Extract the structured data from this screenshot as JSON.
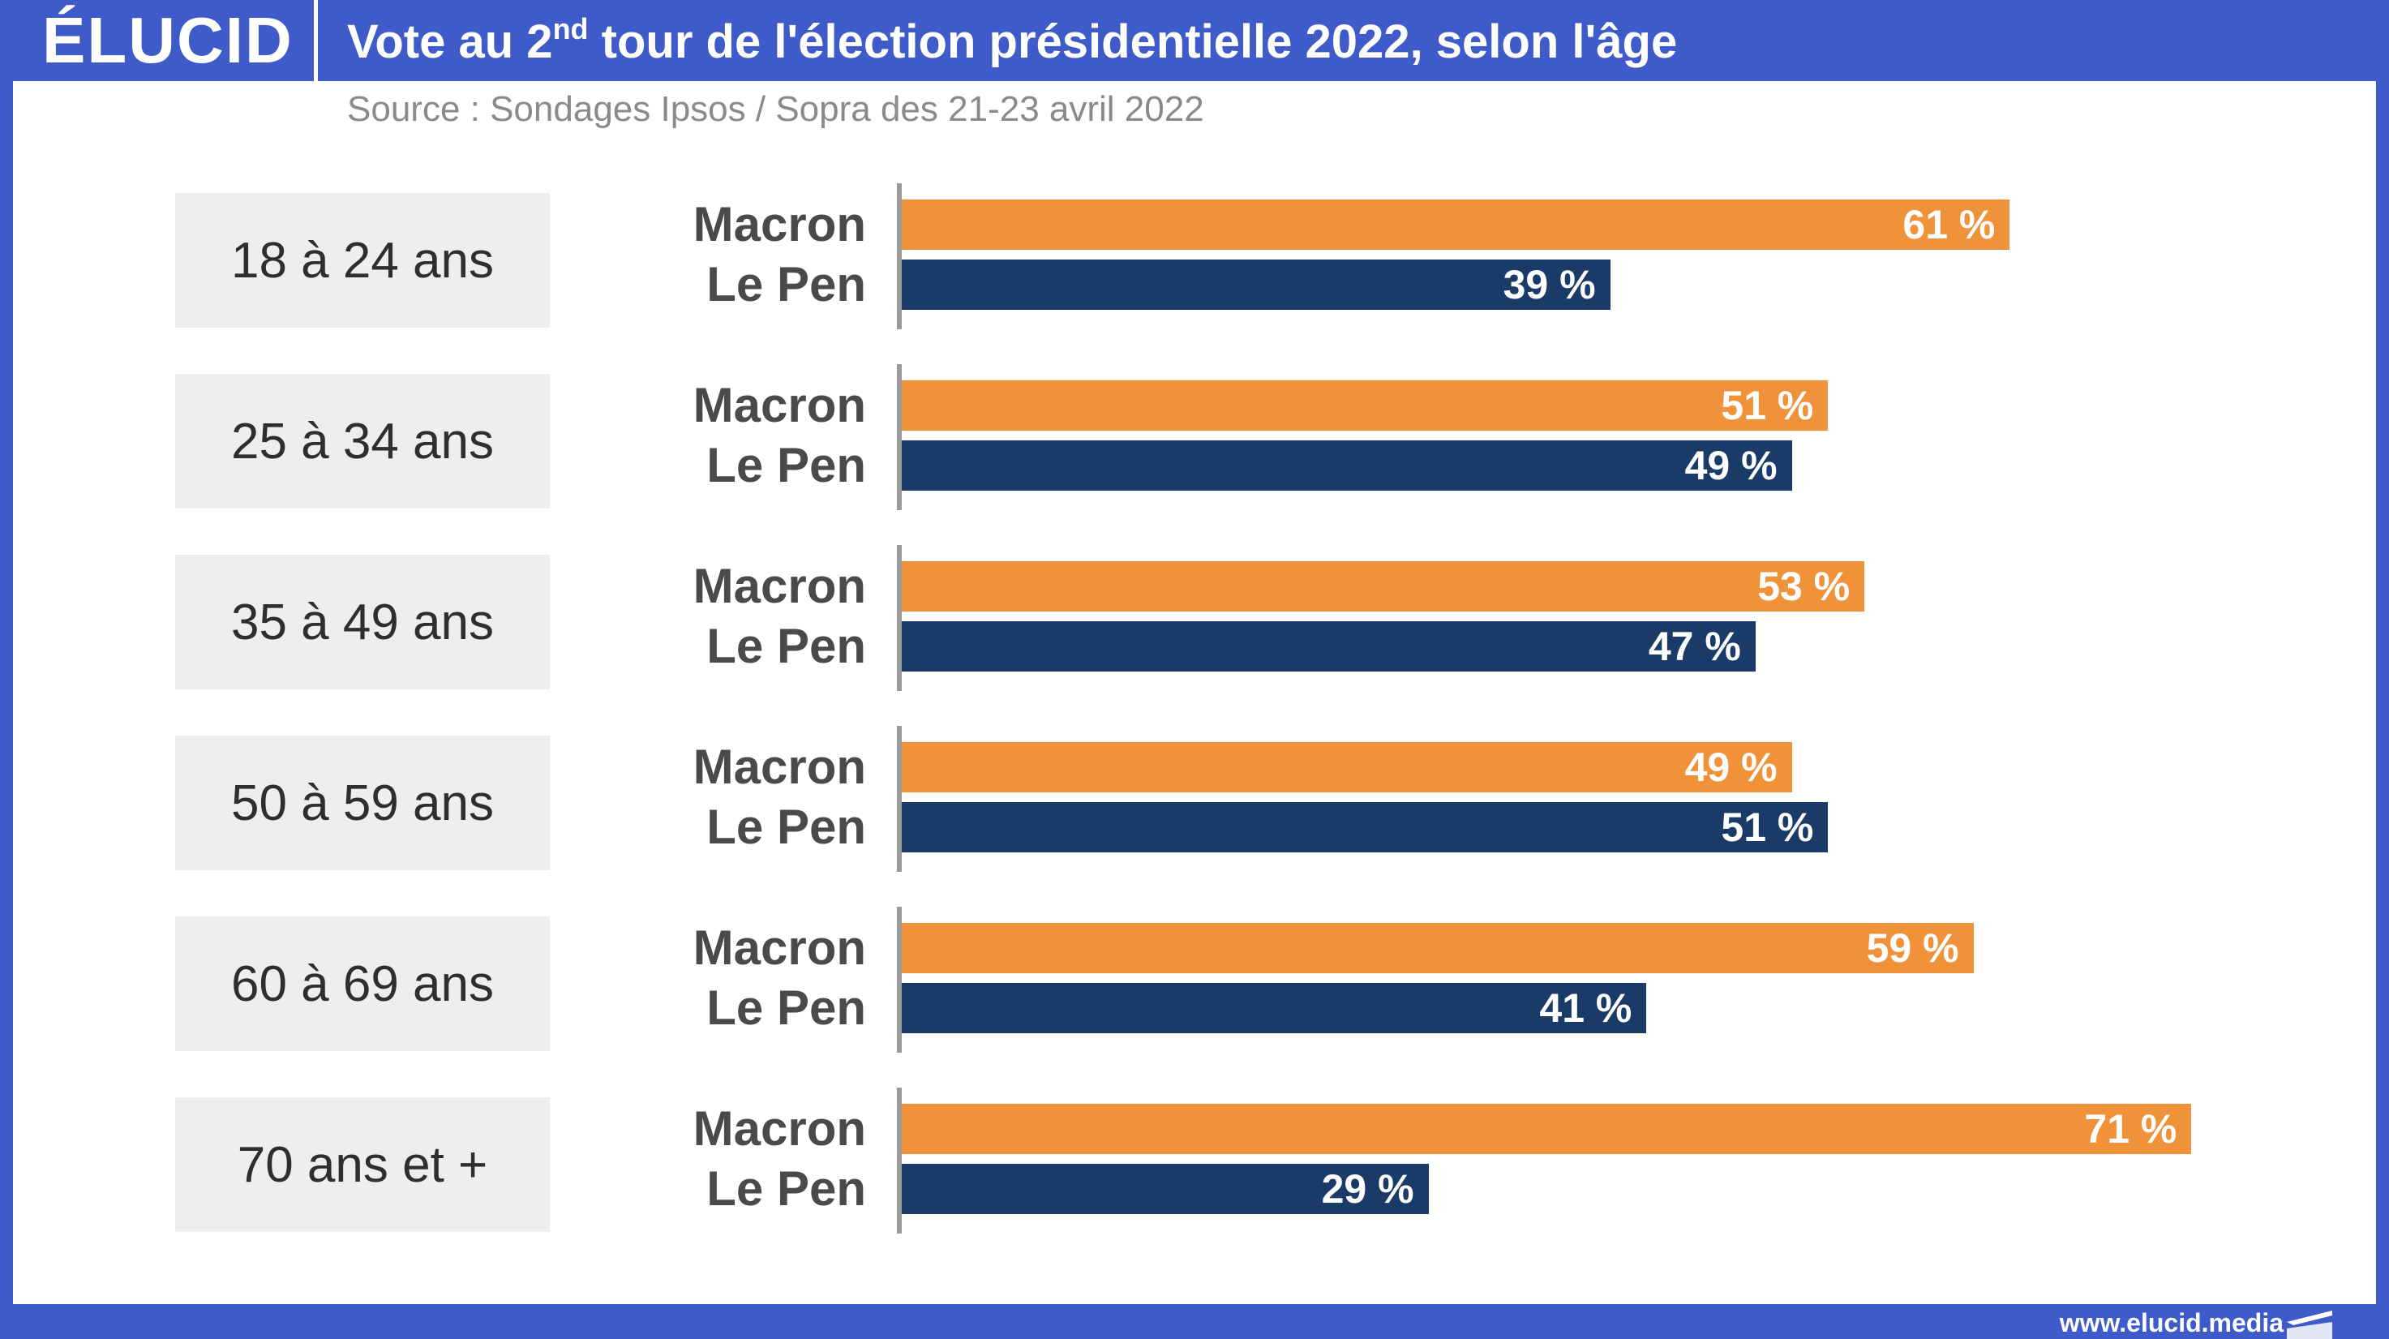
{
  "header": {
    "logo": "ÉLUCID",
    "title_part1": "Vote au 2",
    "title_sup": "nd",
    "title_part2": " tour de l'élection présidentielle 2022, selon l'âge"
  },
  "source": "Source : Sondages Ipsos / Sopra des 21-23 avril 2022",
  "footer": {
    "url": "www.elucid.media"
  },
  "colors": {
    "macron": "#f0923a",
    "lepen": "#1a3a67",
    "brand": "#3f5bc9"
  },
  "chart_data": {
    "type": "bar",
    "orientation": "horizontal",
    "title": "Vote au 2nd tour de l'élection présidentielle 2022, selon l'âge",
    "subtitle": "Source : Sondages Ipsos / Sopra des 21-23 avril 2022",
    "categories": [
      "18 à 24 ans",
      "25 à 34 ans",
      "35 à 49 ans",
      "50 à 59 ans",
      "60 à 69 ans",
      "70 ans et +"
    ],
    "series": [
      {
        "name": "Macron",
        "values": [
          61,
          51,
          53,
          49,
          59,
          71
        ],
        "labels": [
          "61 %",
          "51 %",
          "53 %",
          "49 %",
          "59 %",
          "71 %"
        ]
      },
      {
        "name": "Le Pen",
        "values": [
          39,
          49,
          47,
          51,
          41,
          29
        ],
        "labels": [
          "39 %",
          "49 %",
          "47 %",
          "51 %",
          "41 %",
          "29 %"
        ]
      }
    ],
    "xlim": [
      0,
      100
    ]
  }
}
